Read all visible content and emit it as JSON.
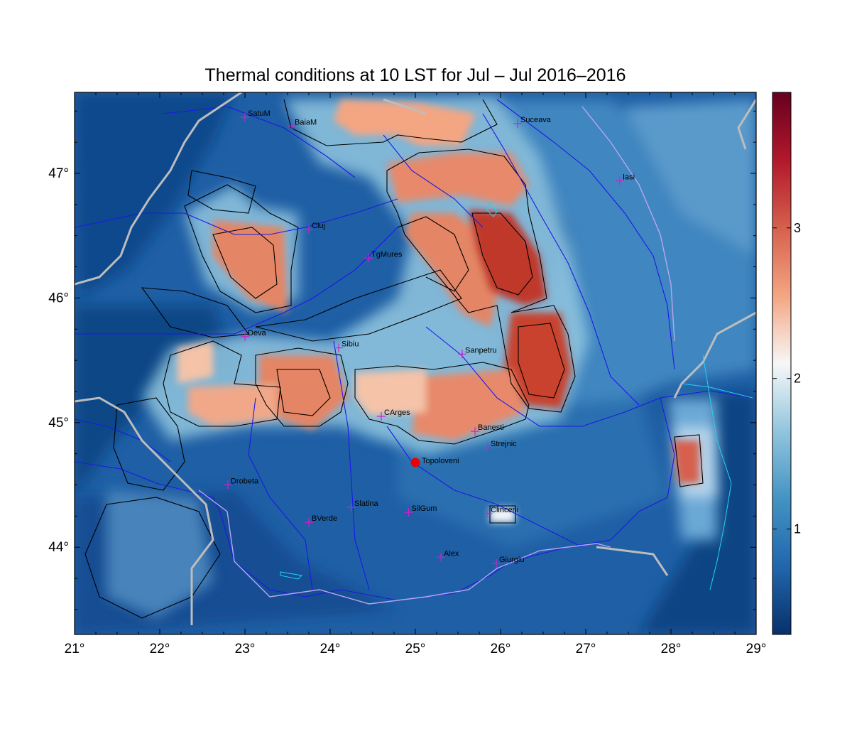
{
  "title": "Thermal conditions at 10 LST for Jul – Jul  2016–2016",
  "map": {
    "lon_range": [
      21,
      29
    ],
    "lat_range": [
      43.3,
      47.65
    ],
    "lon_ticks": [
      "21°",
      "22°",
      "23°",
      "24°",
      "25°",
      "26°",
      "27°",
      "28°",
      "29°"
    ],
    "lat_ticks": [
      {
        "value": 44,
        "label": "44°"
      },
      {
        "value": 45,
        "label": "45°"
      },
      {
        "value": 46,
        "label": "46°"
      },
      {
        "value": 47,
        "label": "47°"
      }
    ]
  },
  "colorbar": {
    "range": [
      0.3,
      3.9
    ],
    "ticks": [
      {
        "value": 1,
        "label": "1"
      },
      {
        "value": 2,
        "label": "2"
      },
      {
        "value": 3,
        "label": "3"
      }
    ],
    "colors": [
      "#08306b",
      "#2166ac",
      "#4393c3",
      "#92c5de",
      "#f7f7f7",
      "#f4a582",
      "#d6604d",
      "#b2182b",
      "#67001f"
    ]
  },
  "colors": {
    "base": "#1f5fa5",
    "river": "#1a1ae6",
    "border": "#bdbdbd",
    "coast": "#b9a6f2",
    "lake": "#22d3ee",
    "station_marker": "#cc22cc",
    "highlight_station": "#ee0000",
    "contour": "#000000"
  },
  "stations": [
    {
      "name": "SatuM",
      "lon": 23.0,
      "lat": 47.45
    },
    {
      "name": "BaiaM",
      "lon": 23.55,
      "lat": 47.38
    },
    {
      "name": "Suceava",
      "lon": 26.2,
      "lat": 47.4
    },
    {
      "name": "Iasi",
      "lon": 27.4,
      "lat": 46.94
    },
    {
      "name": "Cluj",
      "lon": 23.75,
      "lat": 46.55
    },
    {
      "name": "TgMures",
      "lon": 24.45,
      "lat": 46.32
    },
    {
      "name": "Deva",
      "lon": 23.0,
      "lat": 45.69
    },
    {
      "name": "Sibiu",
      "lon": 24.1,
      "lat": 45.6
    },
    {
      "name": "Sanpetru",
      "lon": 25.55,
      "lat": 45.55
    },
    {
      "name": "CArges",
      "lon": 24.6,
      "lat": 45.05
    },
    {
      "name": "Banesti",
      "lon": 25.7,
      "lat": 44.93
    },
    {
      "name": "Strejnic",
      "lon": 25.85,
      "lat": 44.8
    },
    {
      "name": "Drobeta",
      "lon": 22.8,
      "lat": 44.5
    },
    {
      "name": "Slatina",
      "lon": 24.25,
      "lat": 44.32
    },
    {
      "name": "SilGum",
      "lon": 24.92,
      "lat": 44.28
    },
    {
      "name": "Clinceni",
      "lon": 25.85,
      "lat": 44.27
    },
    {
      "name": "BVerde",
      "lon": 23.75,
      "lat": 44.2
    },
    {
      "name": "Alex",
      "lon": 25.3,
      "lat": 43.92
    },
    {
      "name": "Giurgiu",
      "lon": 25.95,
      "lat": 43.87
    }
  ],
  "highlight_station": {
    "name": "Topoloveni",
    "lon": 25.0,
    "lat": 44.68
  }
}
